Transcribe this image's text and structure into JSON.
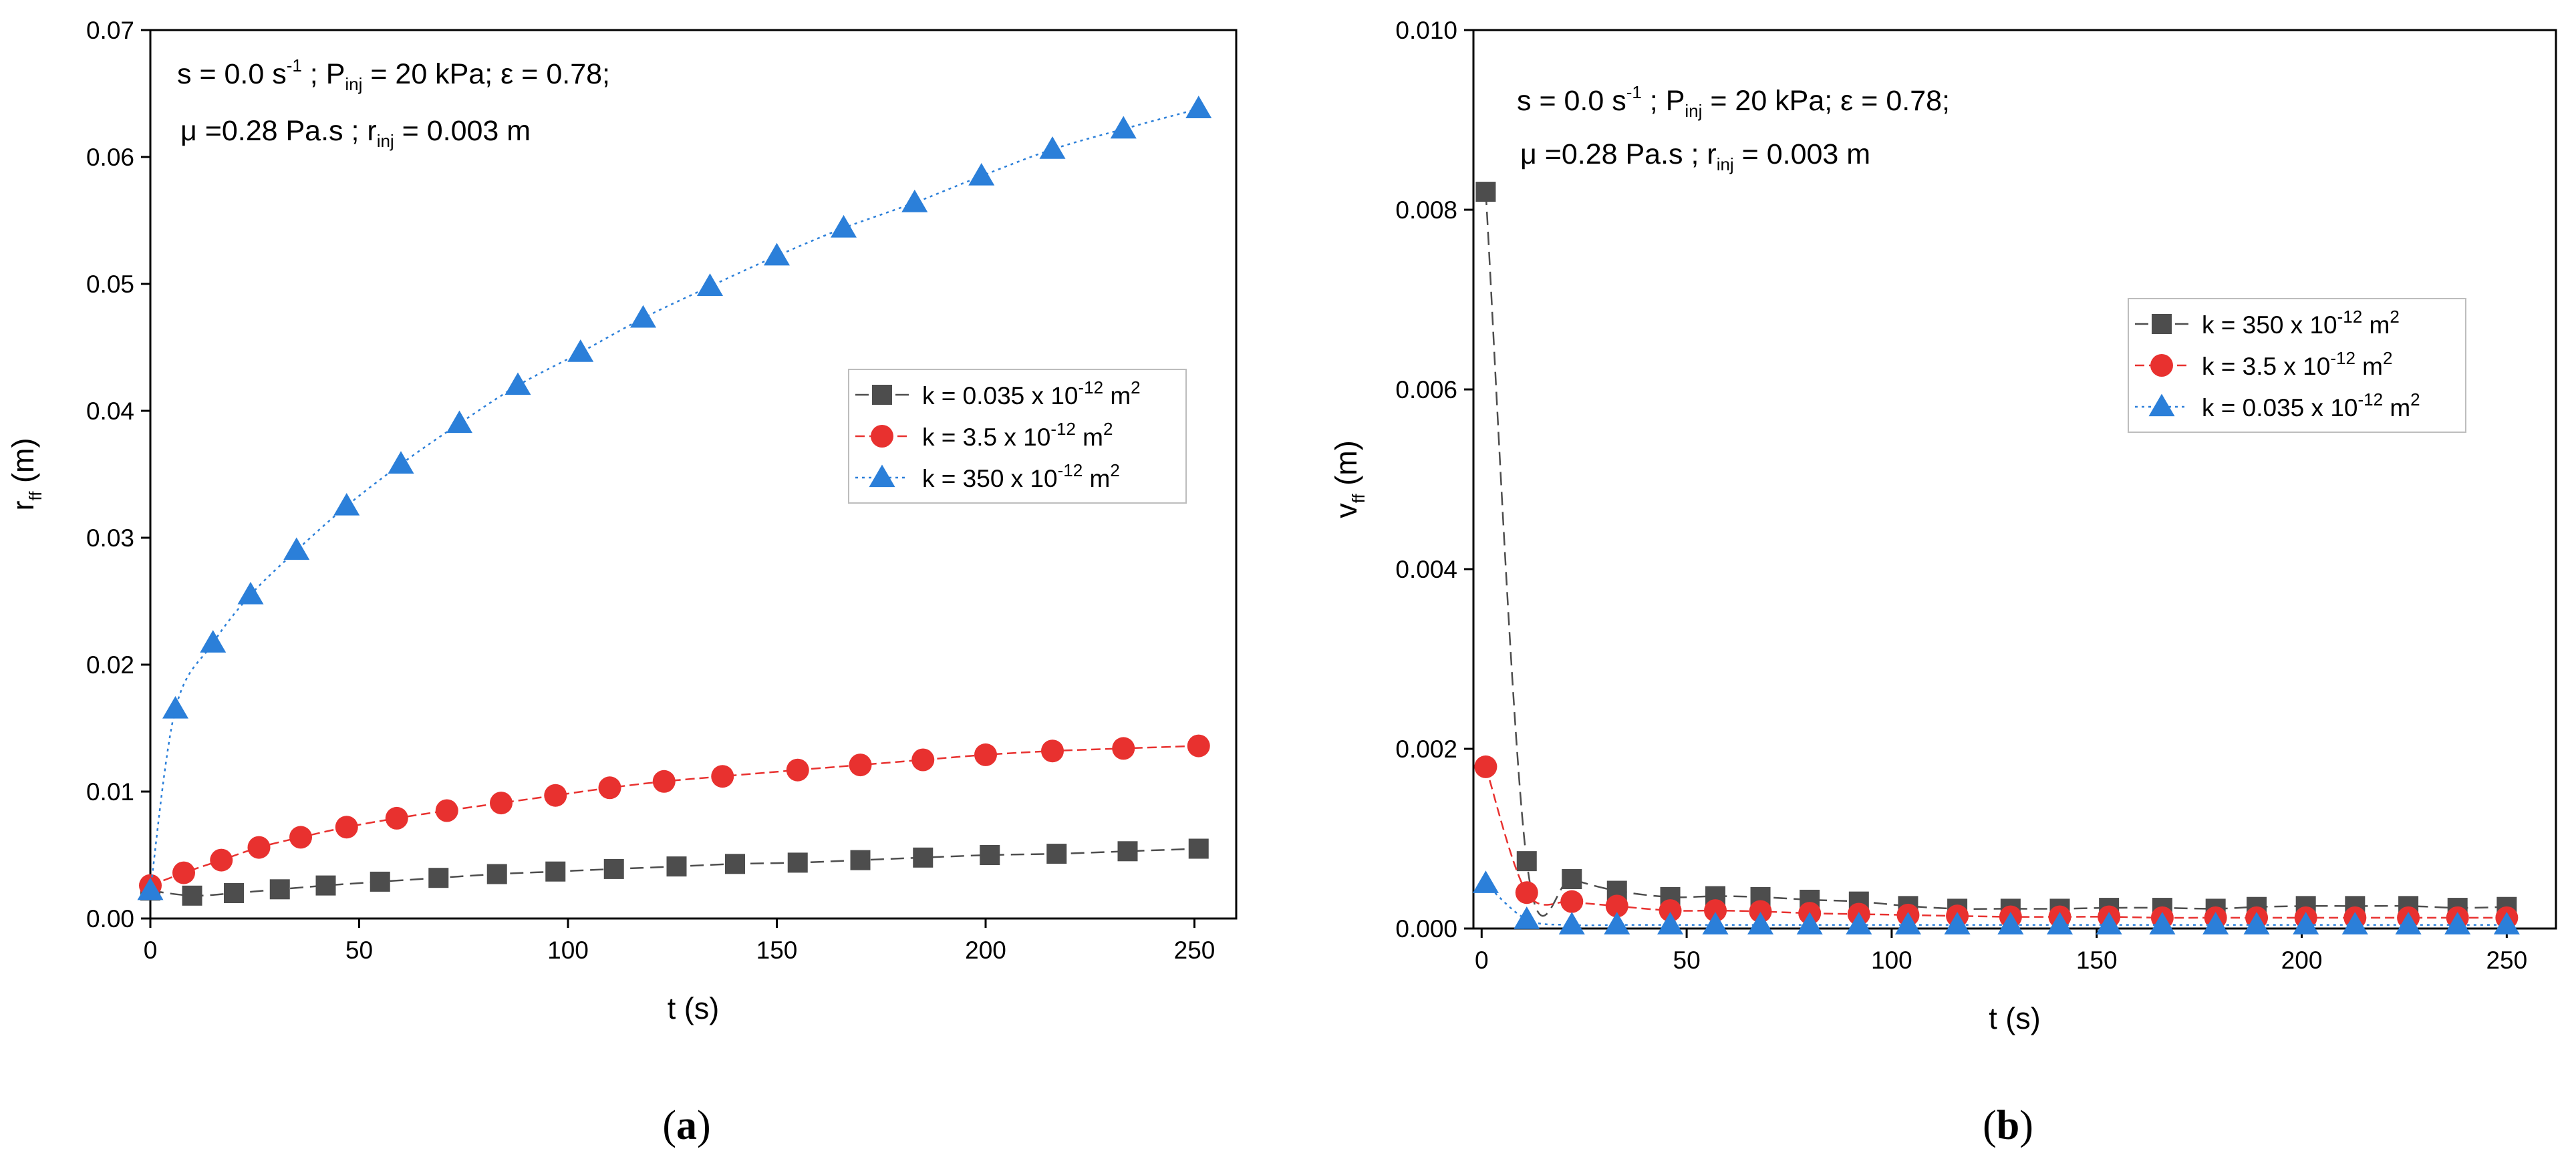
{
  "chart_data": [
    {
      "id": "a",
      "type": "line",
      "caption_open": "(",
      "caption_letter": "a",
      "caption_close": ")",
      "annotation": {
        "line1": {
          "a": "s = 0.0 s",
          "a_sup": "-1",
          "b": " ; P",
          "b_sub": "inj",
          "c": " = 20 kPa; ε = 0.78;"
        },
        "line2": {
          "a": "μ =0.28 Pa.s ; r",
          "a_sub": "inj",
          "b": " = 0.003 m"
        }
      },
      "xlabel": "t (s)",
      "ylabel": {
        "main": "r",
        "sub": "ff",
        "unit": " (m)"
      },
      "xlim": [
        0,
        260
      ],
      "ylim": [
        0,
        0.07
      ],
      "xticks": [
        "0",
        "50",
        "100",
        "150",
        "200",
        "250"
      ],
      "xtick_values": [
        0,
        50,
        100,
        150,
        200,
        250
      ],
      "yticks": [
        "0.00",
        "0.01",
        "0.02",
        "0.03",
        "0.04",
        "0.05",
        "0.06",
        "0.07"
      ],
      "ytick_values": [
        0,
        0.01,
        0.02,
        0.03,
        0.04,
        0.05,
        0.06,
        0.07
      ],
      "legend_position": "middle-right",
      "series": [
        {
          "name": "k = 0.035 x 10",
          "name_sup": "-12",
          "name_unit": " m",
          "name_unit_sup": "2",
          "marker": "square",
          "color": "#4d4d4d",
          "dash": "20,10",
          "x": [
            0,
            10,
            20,
            31,
            42,
            55,
            69,
            83,
            97,
            111,
            126,
            140,
            155,
            170,
            185,
            201,
            217,
            234,
            251
          ],
          "y": [
            0.0022,
            0.0018,
            0.002,
            0.0023,
            0.0026,
            0.0029,
            0.0032,
            0.0035,
            0.0037,
            0.0039,
            0.0041,
            0.0043,
            0.0044,
            0.0046,
            0.0048,
            0.005,
            0.0051,
            0.0053,
            0.0055
          ]
        },
        {
          "name": "k = 3.5 x 10",
          "name_sup": "-12",
          "name_unit": " m",
          "name_unit_sup": "2",
          "marker": "circle",
          "color": "#e8312f",
          "dash": "14,7",
          "x": [
            0,
            8,
            17,
            26,
            36,
            47,
            59,
            71,
            84,
            97,
            110,
            123,
            137,
            155,
            170,
            185,
            200,
            216,
            233,
            251
          ],
          "y": [
            0.0026,
            0.0036,
            0.0046,
            0.0056,
            0.0064,
            0.0072,
            0.0079,
            0.0085,
            0.0091,
            0.0097,
            0.0103,
            0.0108,
            0.0112,
            0.0117,
            0.0121,
            0.0125,
            0.0129,
            0.0132,
            0.0134,
            0.0136
          ]
        },
        {
          "name": "k = 350 x 10",
          "name_sup": "-12",
          "name_unit": " m",
          "name_unit_sup": "2",
          "marker": "triangle",
          "color": "#2b7fd9",
          "dash": "4,6",
          "x": [
            0,
            6,
            15,
            24,
            35,
            47,
            60,
            74,
            88,
            103,
            118,
            134,
            150,
            166,
            183,
            199,
            216,
            233,
            251
          ],
          "y": [
            0.0022,
            0.0165,
            0.0217,
            0.0255,
            0.029,
            0.0325,
            0.0358,
            0.039,
            0.042,
            0.0446,
            0.0473,
            0.0498,
            0.0522,
            0.0544,
            0.0564,
            0.0585,
            0.0606,
            0.0622,
            0.0638
          ]
        }
      ]
    },
    {
      "id": "b",
      "type": "line",
      "caption_open": "(",
      "caption_letter": "b",
      "caption_close": ")",
      "annotation": {
        "line1": {
          "a": "s = 0.0 s",
          "a_sup": "-1",
          "b": " ; P",
          "b_sub": "inj",
          "c": " = 20 kPa; ε = 0.78;"
        },
        "line2": {
          "a": "μ =0.28 Pa.s ; r",
          "a_sub": "inj",
          "b": " = 0.003 m"
        }
      },
      "xlabel": "t (s)",
      "ylabel": {
        "main": "v",
        "sub": "ff",
        "unit": " (m)"
      },
      "xlim": [
        -2,
        262
      ],
      "ylim": [
        0,
        0.01
      ],
      "xticks": [
        "0",
        "50",
        "100",
        "150",
        "200",
        "250"
      ],
      "xtick_values": [
        0,
        50,
        100,
        150,
        200,
        250
      ],
      "yticks": [
        "0.000",
        "0.002",
        "0.004",
        "0.006",
        "0.008",
        "0.010"
      ],
      "ytick_values": [
        0,
        0.002,
        0.004,
        0.006,
        0.008,
        0.01
      ],
      "legend_position": "middle-right",
      "series": [
        {
          "name": "k = 350 x 10",
          "name_sup": "-12",
          "name_unit": " m",
          "name_unit_sup": "2",
          "marker": "square",
          "color": "#4d4d4d",
          "dash": "20,10",
          "x": [
            1,
            11,
            22,
            33,
            46,
            57,
            68,
            80,
            92,
            104,
            116,
            129,
            141,
            153,
            166,
            179,
            189,
            201,
            213,
            226,
            238,
            250
          ],
          "y": [
            0.0082,
            0.00075,
            0.00055,
            0.00042,
            0.00035,
            0.00036,
            0.00035,
            0.00032,
            0.0003,
            0.00025,
            0.00022,
            0.00022,
            0.00022,
            0.00023,
            0.00023,
            0.00022,
            0.00024,
            0.00025,
            0.00025,
            0.00025,
            0.00023,
            0.00024
          ]
        },
        {
          "name": "k = 3.5 x 10",
          "name_sup": "-12",
          "name_unit": " m",
          "name_unit_sup": "2",
          "marker": "circle",
          "color": "#e8312f",
          "dash": "14,7",
          "x": [
            1,
            11,
            22,
            33,
            46,
            57,
            68,
            80,
            92,
            104,
            116,
            129,
            141,
            153,
            166,
            179,
            189,
            201,
            213,
            226,
            238,
            250
          ],
          "y": [
            0.0018,
            0.0004,
            0.0003,
            0.00025,
            0.0002,
            0.0002,
            0.00019,
            0.00017,
            0.00016,
            0.00015,
            0.00014,
            0.00013,
            0.00013,
            0.00013,
            0.00012,
            0.00012,
            0.00012,
            0.00012,
            0.00012,
            0.00012,
            0.00012,
            0.00012
          ]
        },
        {
          "name": "k = 0.035 x 10",
          "name_sup": "-12",
          "name_unit": " m",
          "name_unit_sup": "2",
          "marker": "triangle",
          "color": "#2b7fd9",
          "dash": "4,6",
          "x": [
            1,
            11,
            22,
            33,
            46,
            57,
            68,
            80,
            92,
            104,
            116,
            129,
            141,
            153,
            166,
            179,
            189,
            201,
            213,
            226,
            238,
            250
          ],
          "y": [
            0.0005,
            0.0001,
            4e-05,
            4e-05,
            4e-05,
            4e-05,
            4e-05,
            4e-05,
            4e-05,
            4e-05,
            4e-05,
            4e-05,
            4e-05,
            4e-05,
            4e-05,
            4e-05,
            4e-05,
            4e-05,
            4e-05,
            4e-05,
            4e-05,
            4e-05
          ]
        }
      ]
    }
  ]
}
